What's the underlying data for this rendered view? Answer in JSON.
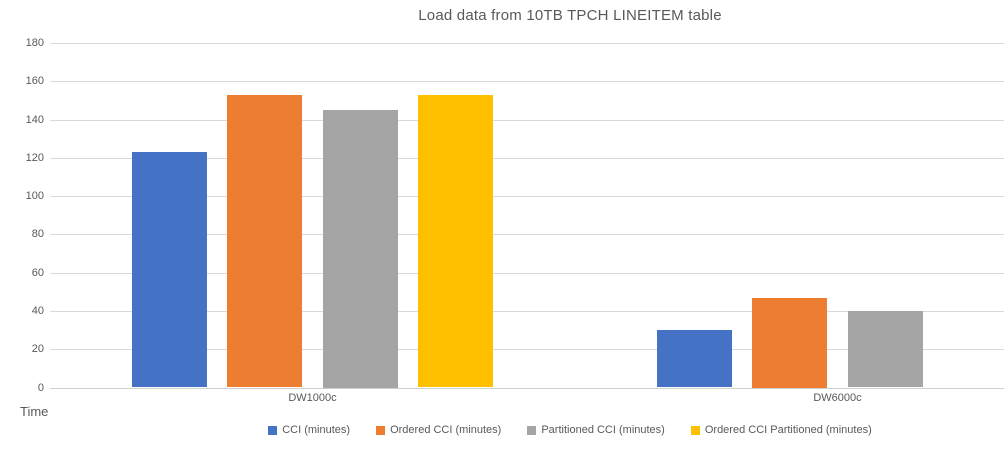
{
  "chart_data": {
    "type": "bar",
    "title": "Load data from 10TB TPCH LINEITEM table",
    "ylabel": "Time",
    "categories": [
      "DW1000c",
      "DW6000c"
    ],
    "series": [
      {
        "name": "CCI (minutes)",
        "color": "#4472C4",
        "values": [
          123,
          30
        ]
      },
      {
        "name": "Ordered CCI (minutes)",
        "color": "#ED7D31",
        "values": [
          153,
          47
        ]
      },
      {
        "name": "Partitioned CCI (minutes)",
        "color": "#A5A5A5",
        "values": [
          145,
          40
        ]
      },
      {
        "name": "Ordered CCI Partitioned (minutes)",
        "color": "#FFC000",
        "values": [
          153,
          null
        ]
      }
    ],
    "ylim": [
      0,
      180
    ],
    "yticks": [
      0,
      20,
      40,
      60,
      80,
      100,
      120,
      140,
      160,
      180
    ],
    "grid": true,
    "legend_position": "bottom",
    "text_color": "#595959",
    "gridline_color": "#D9D9D9"
  }
}
